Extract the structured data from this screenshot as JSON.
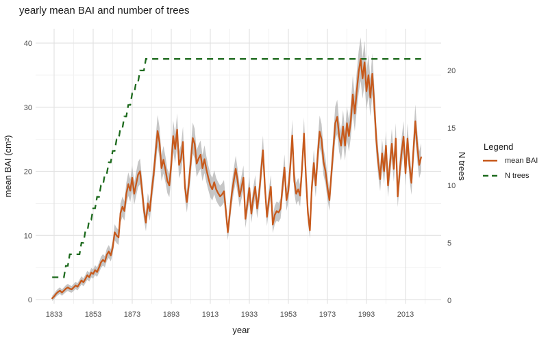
{
  "title": "yearly mean BAI and number of trees",
  "axes": {
    "x": {
      "label": "year",
      "ticks": [
        1833,
        1853,
        1873,
        1893,
        1913,
        1933,
        1953,
        1973,
        1993,
        2013
      ]
    },
    "y_left": {
      "label": "mean BAI (cm²)",
      "ticks": [
        0,
        10,
        20,
        30,
        40
      ]
    },
    "y_right": {
      "label": "N trees",
      "ticks": [
        0,
        5,
        10,
        15,
        20
      ]
    }
  },
  "legend": {
    "title": "Legend",
    "entries": [
      {
        "label": "mean BAI",
        "color": "#C7591B",
        "linetype": "solid"
      },
      {
        "label": "N trees",
        "color": "#1D6A1D",
        "linetype": "dashed"
      }
    ]
  },
  "colors": {
    "mean_bai_line": "#C7591B",
    "n_trees_line": "#1D6A1D",
    "ribbon": "#B3B3B3",
    "grid_major": "#E3E3E3",
    "grid_minor": "#F0F0F0",
    "tick_text": "#4D4D4D",
    "title_text": "#1A1A1A",
    "background": "#FFFFFF"
  },
  "chart_data": {
    "type": "line",
    "title": "yearly mean BAI and number of trees",
    "xlabel": "year",
    "ylabel_left": "mean BAI (cm²)",
    "ylabel_right": "N trees",
    "x_years": {
      "start": 1832,
      "end": 2021,
      "step": 1
    },
    "xlim": [
      1822,
      2031
    ],
    "ylim_left": [
      0,
      41
    ],
    "ylim_right": [
      0,
      21
    ],
    "grid": true,
    "legend_position": "right",
    "series": [
      {
        "name": "mean BAI",
        "axis": "left",
        "linetype": "solid",
        "color": "#C7591B",
        "ribbon": {
          "color": "#B3B3B3",
          "opacity": 0.75,
          "halfwidth_base": 0.4,
          "halfwidth_per_unit": 0.08
        },
        "values": [
          0.2,
          0.5,
          0.9,
          1.2,
          1.4,
          1.1,
          1.4,
          1.7,
          1.9,
          1.7,
          1.6,
          1.9,
          2.2,
          2.0,
          2.5,
          3.0,
          2.7,
          3.2,
          3.8,
          3.5,
          4.2,
          4.0,
          4.6,
          4.3,
          5.0,
          5.8,
          6.2,
          5.9,
          7.0,
          7.5,
          6.9,
          8.1,
          10.5,
          10.0,
          9.7,
          13.5,
          14.5,
          13.8,
          16.5,
          18.0,
          17.0,
          19.0,
          16.5,
          18.0,
          19.5,
          20.0,
          17.2,
          14.0,
          12.0,
          15.0,
          13.8,
          17.0,
          19.5,
          23.0,
          26.3,
          24.5,
          20.5,
          21.8,
          20.3,
          18.5,
          17.8,
          21.0,
          25.5,
          23.5,
          26.5,
          21.0,
          22.0,
          24.6,
          17.5,
          15.2,
          18.0,
          21.5,
          25.2,
          24.3,
          21.2,
          22.0,
          22.6,
          20.5,
          21.9,
          20.3,
          19.0,
          17.8,
          17.2,
          18.3,
          17.2,
          16.6,
          16.1,
          16.4,
          16.9,
          13.8,
          10.5,
          13.5,
          16.5,
          18.5,
          20.4,
          18.5,
          16.1,
          17.5,
          19.0,
          12.6,
          15.0,
          17.4,
          13.4,
          15.8,
          17.6,
          14.2,
          16.5,
          20.0,
          23.3,
          17.5,
          12.9,
          15.5,
          17.6,
          11.7,
          13.2,
          13.8,
          13.6,
          14.2,
          17.5,
          20.6,
          15.5,
          17.0,
          21.0,
          25.6,
          18.5,
          16.5,
          17.2,
          16.2,
          20.5,
          25.9,
          19.0,
          13.5,
          10.8,
          17.5,
          21.3,
          17.8,
          22.5,
          26.2,
          25.0,
          21.5,
          20.0,
          17.5,
          15.5,
          19.5,
          23.5,
          27.5,
          28.5,
          25.5,
          24.0,
          27.0,
          24.0,
          27.5,
          25.5,
          28.0,
          32.0,
          29.0,
          32.5,
          35.5,
          37.5,
          34.5,
          37.0,
          32.5,
          35.0,
          31.5,
          35.2,
          30.5,
          25.0,
          21.5,
          18.8,
          22.8,
          20.0,
          24.0,
          17.8,
          21.0,
          24.3,
          20.4,
          25.1,
          16.1,
          20.0,
          23.0,
          25.4,
          19.7,
          25.1,
          21.0,
          18.2,
          23.0,
          27.8,
          24.0,
          21.0,
          22.2
        ]
      },
      {
        "name": "N trees",
        "axis": "right",
        "linetype": "dashed",
        "color": "#1D6A1D",
        "values": [
          2,
          2,
          2,
          2,
          2,
          2,
          2,
          3,
          3,
          4,
          4,
          4,
          4,
          4,
          4,
          5,
          5,
          6,
          6,
          7,
          7,
          8,
          8,
          9,
          9,
          10,
          10,
          11,
          11,
          12,
          12,
          13,
          13,
          14,
          14,
          15,
          15,
          16,
          16,
          17,
          17,
          18,
          18,
          19,
          19,
          20,
          20,
          20,
          21,
          21,
          21,
          21,
          21,
          21,
          21,
          21,
          21,
          21,
          21,
          21,
          21,
          21,
          21,
          21,
          21,
          21,
          21,
          21,
          21,
          21,
          21,
          21,
          21,
          21,
          21,
          21,
          21,
          21,
          21,
          21,
          21,
          21,
          21,
          21,
          21,
          21,
          21,
          21,
          21,
          21,
          21,
          21,
          21,
          21,
          21,
          21,
          21,
          21,
          21,
          21,
          21,
          21,
          21,
          21,
          21,
          21,
          21,
          21,
          21,
          21,
          21,
          21,
          21,
          21,
          21,
          21,
          21,
          21,
          21,
          21,
          21,
          21,
          21,
          21,
          21,
          21,
          21,
          21,
          21,
          21,
          21,
          21,
          21,
          21,
          21,
          21,
          21,
          21,
          21,
          21,
          21,
          21,
          21,
          21,
          21,
          21,
          21,
          21,
          21,
          21,
          21,
          21,
          21,
          21,
          21,
          21,
          21,
          21,
          21,
          21,
          21,
          21,
          21,
          21,
          21,
          21,
          21,
          21,
          21,
          21,
          21,
          21,
          21,
          21,
          21,
          21,
          21,
          21,
          21,
          21,
          21,
          21,
          21,
          21,
          21,
          21,
          21,
          21,
          21,
          21
        ]
      }
    ]
  }
}
